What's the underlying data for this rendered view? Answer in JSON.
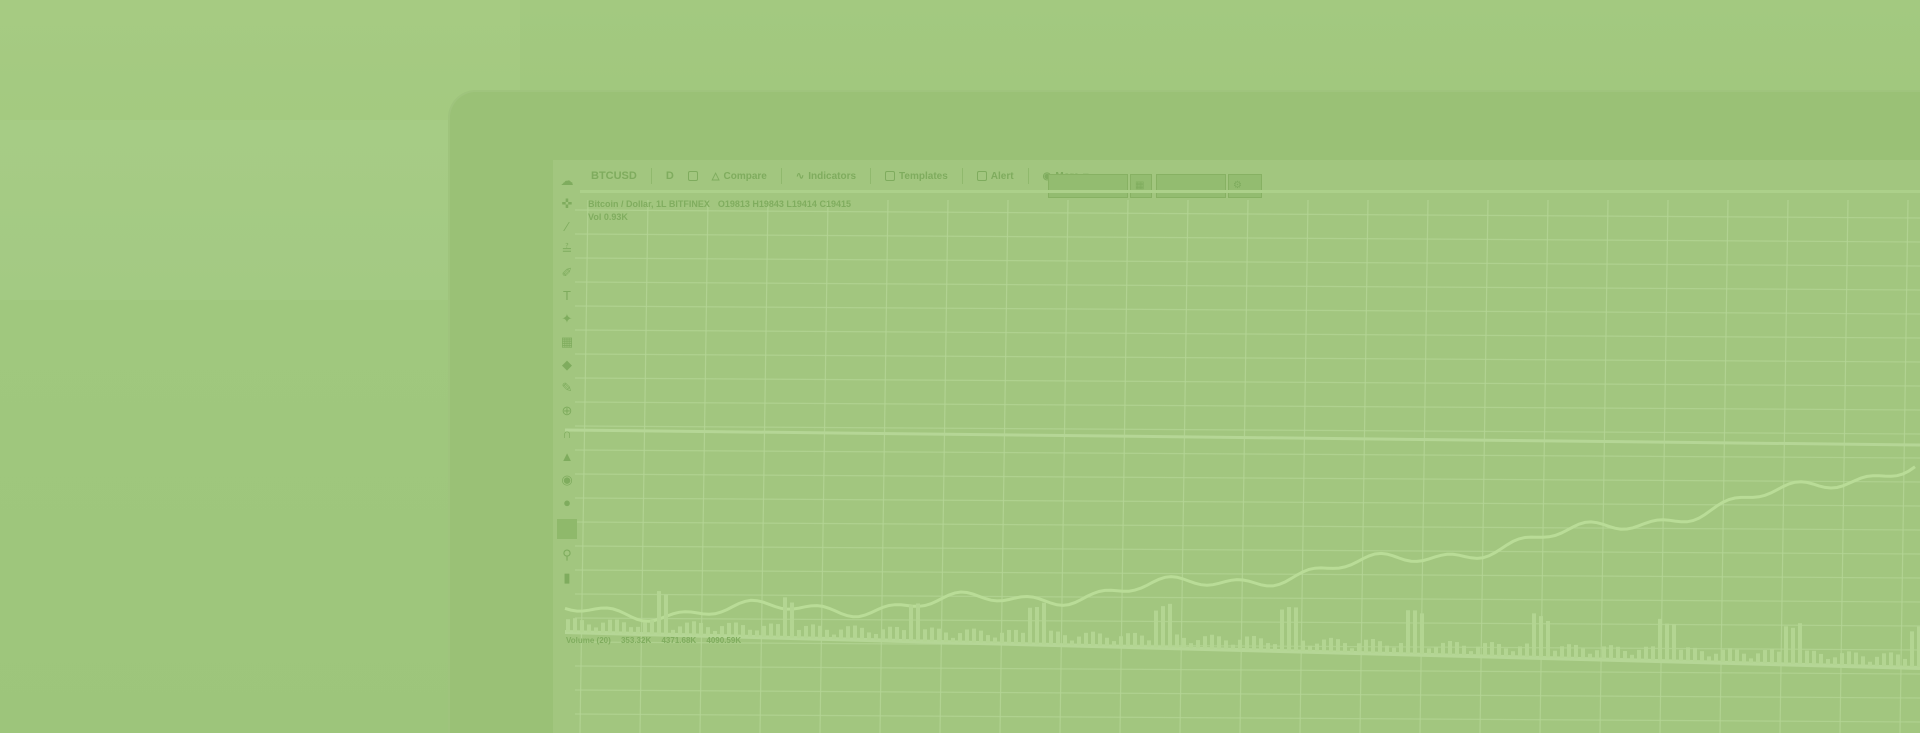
{
  "toolbar": {
    "symbol": "BTCUSD",
    "interval": "D",
    "compare_label": "Compare",
    "indicators_label": "Indicators",
    "templates_label": "Templates",
    "alert_label": "Alert",
    "more_label": "More"
  },
  "legend": {
    "pair": "Bitcoin / Dollar, 1L BITFINEX",
    "ohlc": "O19813 H19843 L19414 C19415",
    "volume": "Vol 0.93K"
  },
  "volume_legend": {
    "label": "Volume (20)",
    "values": [
      "353.32K",
      "4371.68K",
      "4090.59K"
    ]
  },
  "icons": {
    "cloud": "cloud-icon",
    "crosshair": "crosshair-icon",
    "trendline": "trendline-icon",
    "brush": "brush-icon",
    "text": "text-icon",
    "pattern": "pattern-icon",
    "measure": "ruler-icon",
    "zoom": "zoom-icon",
    "magnet": "magnet-icon",
    "lock": "lock-icon",
    "eye": "eye-icon",
    "trash": "trash-icon",
    "pin": "pin-icon"
  },
  "colors": {
    "overlay": "#a3c97f",
    "grid": "#b5d696",
    "price_line": "#b9dc97",
    "volume": "#b3d592"
  }
}
